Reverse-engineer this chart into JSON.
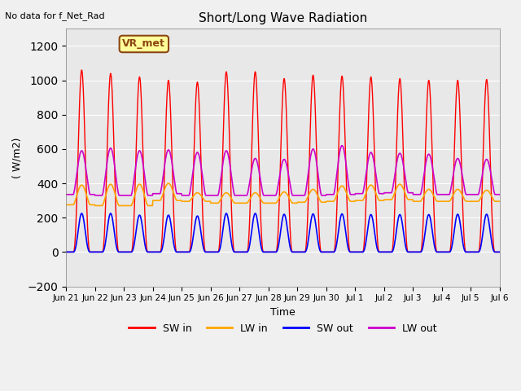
{
  "title": "Short/Long Wave Radiation",
  "xlabel": "Time",
  "ylabel": "( W/m2)",
  "ylim": [
    -200,
    1300
  ],
  "yticks": [
    -200,
    0,
    200,
    400,
    600,
    800,
    1000,
    1200
  ],
  "x_labels": [
    "Jun 21",
    "Jun 22",
    "Jun 23",
    "Jun 24",
    "Jun 25",
    "Jun 26",
    "Jun 27",
    "Jun 28",
    "Jun 29",
    "Jun 30",
    "Jul 1",
    "Jul 2",
    "Jul 3",
    "Jul 4",
    "Jul 5",
    "Jul 6"
  ],
  "note": "No data for f_Net_Rad",
  "legend_label": "VR_met",
  "sw_in_color": "#ff0000",
  "lw_in_color": "#ffa500",
  "sw_out_color": "#0000ff",
  "lw_out_color": "#cc00cc",
  "plot_bg": "#e8e8e8",
  "n_days": 15,
  "points_per_day": 96,
  "sw_in_peaks": [
    1060,
    1040,
    1020,
    1000,
    990,
    1050,
    1050,
    1010,
    1030,
    1025,
    1020,
    1010,
    1000,
    1000,
    1005
  ],
  "sw_out_peaks": [
    225,
    225,
    215,
    215,
    210,
    225,
    225,
    220,
    222,
    222,
    218,
    218,
    218,
    220,
    220
  ],
  "lw_in_day_peaks": [
    390,
    395,
    395,
    400,
    345,
    345,
    345,
    350,
    365,
    385,
    390,
    395,
    365,
    365,
    360
  ],
  "lw_in_night": [
    275,
    270,
    270,
    300,
    295,
    285,
    285,
    285,
    290,
    295,
    300,
    305,
    295,
    295,
    295
  ],
  "lw_out_day_peaks": [
    590,
    605,
    590,
    595,
    580,
    590,
    545,
    540,
    600,
    620,
    580,
    575,
    570,
    545,
    540
  ],
  "lw_out_night": [
    335,
    330,
    330,
    340,
    330,
    330,
    330,
    330,
    330,
    335,
    340,
    345,
    335,
    335,
    335
  ]
}
